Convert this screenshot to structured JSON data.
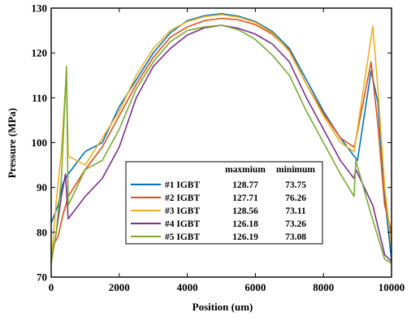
{
  "chart_data": {
    "type": "line",
    "xlabel": "Position (um)",
    "ylabel": "Pressure (MPa)",
    "xlim": [
      0,
      10000
    ],
    "ylim": [
      70,
      130
    ],
    "x_ticks": [
      0,
      2000,
      4000,
      6000,
      8000,
      10000
    ],
    "y_ticks": [
      70,
      80,
      90,
      100,
      110,
      120,
      130
    ],
    "x_tick_labels": [
      "0",
      "2000",
      "4000",
      "6000",
      "8000",
      "10000"
    ],
    "y_tick_labels": [
      "70",
      "80",
      "90",
      "100",
      "110",
      "120",
      "130"
    ],
    "grid": false,
    "legend_position": "lower-center",
    "legend_headers": [
      "maxmium",
      "minimum"
    ],
    "series": [
      {
        "name": "#1 IGBT",
        "color": "#0072BD",
        "max": "128.77",
        "min": "73.75",
        "points": [
          [
            0,
            82
          ],
          [
            200,
            86
          ],
          [
            350,
            91
          ],
          [
            500,
            93
          ],
          [
            1000,
            98
          ],
          [
            1500,
            100
          ],
          [
            2000,
            108
          ],
          [
            2500,
            114
          ],
          [
            3000,
            120
          ],
          [
            3500,
            124.5
          ],
          [
            4000,
            127.2
          ],
          [
            4500,
            128.3
          ],
          [
            5000,
            128.77
          ],
          [
            5500,
            128.2
          ],
          [
            6000,
            127
          ],
          [
            6500,
            124.8
          ],
          [
            7000,
            121
          ],
          [
            7500,
            114
          ],
          [
            8000,
            107
          ],
          [
            8500,
            101
          ],
          [
            9000,
            96
          ],
          [
            9400,
            116
          ],
          [
            9600,
            109
          ],
          [
            9800,
            88
          ],
          [
            10000,
            73.75
          ]
        ]
      },
      {
        "name": "#2 IGBT",
        "color": "#D95319",
        "max": "127.71",
        "min": "76.26",
        "points": [
          [
            0,
            76.26
          ],
          [
            200,
            79
          ],
          [
            350,
            84
          ],
          [
            500,
            88
          ],
          [
            1000,
            94
          ],
          [
            1500,
            99
          ],
          [
            2000,
            106
          ],
          [
            2500,
            113
          ],
          [
            3000,
            119
          ],
          [
            3500,
            123.5
          ],
          [
            4000,
            125.8
          ],
          [
            4500,
            127.2
          ],
          [
            5000,
            127.71
          ],
          [
            5500,
            127.4
          ],
          [
            6000,
            126.3
          ],
          [
            6500,
            124.2
          ],
          [
            7000,
            120.6
          ],
          [
            7500,
            113
          ],
          [
            8000,
            106.5
          ],
          [
            8500,
            101
          ],
          [
            8900,
            99
          ],
          [
            8950,
            100.5
          ],
          [
            9400,
            118
          ],
          [
            9600,
            104
          ],
          [
            9800,
            86
          ],
          [
            10000,
            80
          ]
        ]
      },
      {
        "name": "#3 IGBT",
        "color": "#EDB120",
        "max": "128.56",
        "min": "73.11",
        "points": [
          [
            0,
            73.11
          ],
          [
            150,
            87
          ],
          [
            300,
            98
          ],
          [
            450,
            116
          ],
          [
            500,
            97
          ],
          [
            1000,
            95
          ],
          [
            1500,
            101
          ],
          [
            2000,
            107
          ],
          [
            2500,
            115
          ],
          [
            3000,
            121
          ],
          [
            3500,
            125
          ],
          [
            4000,
            127
          ],
          [
            4500,
            128.1
          ],
          [
            5000,
            128.56
          ],
          [
            5500,
            128
          ],
          [
            6000,
            126.8
          ],
          [
            6500,
            124.5
          ],
          [
            7000,
            120.3
          ],
          [
            7500,
            113
          ],
          [
            8000,
            106
          ],
          [
            8500,
            100
          ],
          [
            8900,
            98
          ],
          [
            9450,
            126
          ],
          [
            9600,
            112
          ],
          [
            9800,
            90
          ],
          [
            10000,
            77
          ]
        ]
      },
      {
        "name": "#4 IGBT",
        "color": "#7E2F8E",
        "max": "126.18",
        "min": "73.26",
        "points": [
          [
            0,
            73.26
          ],
          [
            150,
            80
          ],
          [
            300,
            88
          ],
          [
            420,
            93
          ],
          [
            500,
            83
          ],
          [
            1000,
            88
          ],
          [
            1500,
            92
          ],
          [
            2000,
            99
          ],
          [
            2500,
            110
          ],
          [
            3000,
            117
          ],
          [
            3500,
            121
          ],
          [
            4000,
            124
          ],
          [
            4500,
            125.6
          ],
          [
            5000,
            126.18
          ],
          [
            5500,
            125.5
          ],
          [
            6000,
            124.2
          ],
          [
            6500,
            122
          ],
          [
            7000,
            118
          ],
          [
            7500,
            110
          ],
          [
            8000,
            103
          ],
          [
            8500,
            96
          ],
          [
            8900,
            92
          ],
          [
            8950,
            94
          ],
          [
            9450,
            86
          ],
          [
            9800,
            75
          ],
          [
            10000,
            73.5
          ]
        ]
      },
      {
        "name": "#5 IGBT",
        "color": "#77AC30",
        "max": "126.19",
        "min": "73.08",
        "points": [
          [
            0,
            73.08
          ],
          [
            150,
            80
          ],
          [
            300,
            92
          ],
          [
            450,
            117
          ],
          [
            500,
            86
          ],
          [
            1000,
            94
          ],
          [
            1500,
            96
          ],
          [
            2000,
            103
          ],
          [
            2500,
            112
          ],
          [
            3000,
            118
          ],
          [
            3500,
            122.5
          ],
          [
            4000,
            125
          ],
          [
            4500,
            125.8
          ],
          [
            5000,
            126.19
          ],
          [
            5500,
            125.2
          ],
          [
            6000,
            123
          ],
          [
            6500,
            119.5
          ],
          [
            7000,
            115
          ],
          [
            7500,
            107
          ],
          [
            8000,
            100
          ],
          [
            8500,
            93
          ],
          [
            8900,
            88
          ],
          [
            8950,
            96
          ],
          [
            9400,
            84
          ],
          [
            9800,
            74
          ],
          [
            10000,
            73.08
          ]
        ]
      }
    ]
  }
}
